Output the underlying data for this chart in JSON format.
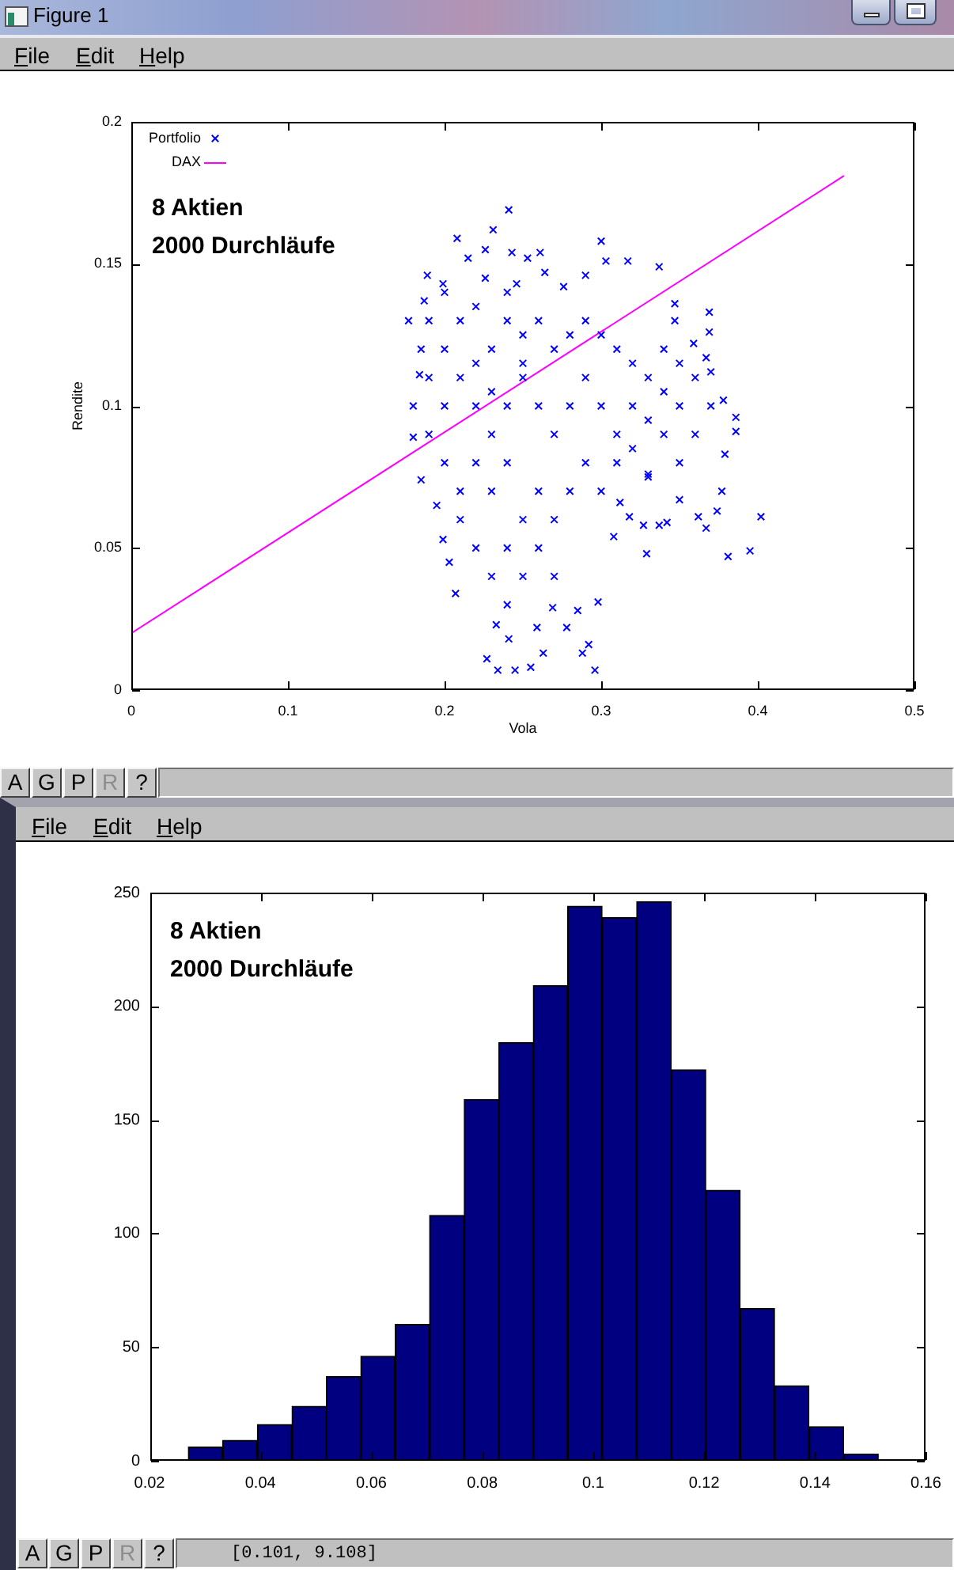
{
  "chart_data": [
    {
      "type": "scatter",
      "xlabel": "Vola",
      "ylabel": "Rendite",
      "legend": "top left",
      "marker": "cross",
      "xlim": [
        0,
        0.5
      ],
      "ylim": [
        0,
        0.2
      ],
      "xticks": [
        0,
        0.1,
        0.2,
        0.3,
        0.4,
        0.5
      ],
      "yticks": [
        0,
        0.05,
        0.1,
        0.15,
        0.2
      ],
      "series": [
        {
          "name": "Portfolio",
          "color": "#0000ff",
          "x": [
            0.241,
            0.231,
            0.208,
            0.3,
            0.226,
            0.243,
            0.261,
            0.215,
            0.253,
            0.264,
            0.337,
            0.317,
            0.303,
            0.29,
            0.189,
            0.187,
            0.177,
            0.199,
            0.369,
            0.347,
            0.347,
            0.369,
            0.359,
            0.367,
            0.37,
            0.378,
            0.386,
            0.386,
            0.379,
            0.377,
            0.374,
            0.402,
            0.395,
            0.381,
            0.367,
            0.362,
            0.342,
            0.337,
            0.327,
            0.329,
            0.318,
            0.308,
            0.312,
            0.35,
            0.33,
            0.298,
            0.292,
            0.296,
            0.288,
            0.285,
            0.278,
            0.263,
            0.255,
            0.245,
            0.234,
            0.227,
            0.241,
            0.233,
            0.259,
            0.269,
            0.207,
            0.203,
            0.199,
            0.195,
            0.185,
            0.18,
            0.18,
            0.184,
            0.185,
            0.226,
            0.246,
            0.276,
            0.2,
            0.21,
            0.22,
            0.23,
            0.24,
            0.25,
            0.26,
            0.27,
            0.28,
            0.29,
            0.3,
            0.31,
            0.32,
            0.33,
            0.34,
            0.35,
            0.36,
            0.35,
            0.34,
            0.33,
            0.32,
            0.31,
            0.3,
            0.29,
            0.28,
            0.27,
            0.26,
            0.25,
            0.24,
            0.23,
            0.22,
            0.21,
            0.2,
            0.19,
            0.2,
            0.21,
            0.22,
            0.23,
            0.24,
            0.25,
            0.26,
            0.27,
            0.28,
            0.29,
            0.3,
            0.31,
            0.32,
            0.33,
            0.22,
            0.23,
            0.24,
            0.25,
            0.26,
            0.27,
            0.24,
            0.21,
            0.25,
            0.23,
            0.22,
            0.24,
            0.2,
            0.34,
            0.35,
            0.36,
            0.37,
            0.19,
            0.19
          ],
          "values": [
            0.169,
            0.162,
            0.159,
            0.158,
            0.155,
            0.154,
            0.154,
            0.152,
            0.152,
            0.147,
            0.149,
            0.151,
            0.151,
            0.146,
            0.146,
            0.137,
            0.13,
            0.143,
            0.133,
            0.136,
            0.13,
            0.126,
            0.122,
            0.117,
            0.112,
            0.102,
            0.096,
            0.091,
            0.083,
            0.07,
            0.063,
            0.061,
            0.049,
            0.047,
            0.057,
            0.061,
            0.059,
            0.058,
            0.058,
            0.048,
            0.061,
            0.054,
            0.066,
            0.067,
            0.076,
            0.031,
            0.016,
            0.007,
            0.013,
            0.028,
            0.022,
            0.013,
            0.008,
            0.007,
            0.007,
            0.011,
            0.018,
            0.023,
            0.022,
            0.029,
            0.034,
            0.045,
            0.053,
            0.065,
            0.074,
            0.089,
            0.1,
            0.111,
            0.12,
            0.145,
            0.143,
            0.142,
            0.12,
            0.13,
            0.135,
            0.12,
            0.13,
            0.125,
            0.13,
            0.12,
            0.125,
            0.13,
            0.125,
            0.12,
            0.115,
            0.11,
            0.105,
            0.1,
            0.09,
            0.08,
            0.09,
            0.095,
            0.1,
            0.09,
            0.1,
            0.11,
            0.1,
            0.09,
            0.1,
            0.11,
            0.1,
            0.09,
            0.1,
            0.11,
            0.1,
            0.09,
            0.08,
            0.07,
            0.08,
            0.07,
            0.08,
            0.06,
            0.07,
            0.06,
            0.07,
            0.08,
            0.07,
            0.08,
            0.085,
            0.075,
            0.05,
            0.04,
            0.05,
            0.04,
            0.05,
            0.04,
            0.03,
            0.06,
            0.115,
            0.105,
            0.115,
            0.14,
            0.14,
            0.12,
            0.115,
            0.11,
            0.1,
            0.11,
            0.13
          ]
        },
        {
          "name": "DAX",
          "type": "line",
          "marker": "none",
          "color": "#ff00ff",
          "x": [
            0,
            0.455
          ],
          "values": [
            0.02,
            0.181
          ]
        }
      ],
      "annotations": [
        "8 Aktien",
        "2000 Durchläufe",
        "Figure 1",
        "File",
        "Edit",
        "Help",
        "A",
        "G",
        "P",
        "R",
        "?"
      ]
    },
    {
      "type": "histogram",
      "color": "#000080",
      "bins": [
        0.027,
        0.0332,
        0.0394,
        0.0457,
        0.0519,
        0.0581,
        0.0643,
        0.0705,
        0.0767,
        0.083,
        0.0892,
        0.0954,
        0.1016,
        0.1078,
        0.1141,
        0.1203,
        0.1265,
        0.1327,
        0.1389,
        0.1452,
        0.1514
      ],
      "values": [
        6,
        9,
        16,
        24,
        37,
        46,
        60,
        108,
        159,
        184,
        209,
        244,
        239,
        246,
        172,
        119,
        67,
        33,
        15,
        3
      ],
      "xlim": [
        0.02,
        0.16
      ],
      "ylim": [
        0,
        250
      ],
      "xticks": [
        0.02,
        0.04,
        0.06,
        0.08,
        0.1,
        0.12,
        0.14,
        0.16
      ],
      "yticks": [
        0,
        50,
        100,
        150,
        200,
        250
      ],
      "annotations": [
        "8 Aktien",
        "2000 Durchläufe",
        "File",
        "Edit",
        "Help",
        "A",
        "G",
        "P",
        "R",
        "?",
        "[0.101, 9.108]"
      ]
    }
  ]
}
